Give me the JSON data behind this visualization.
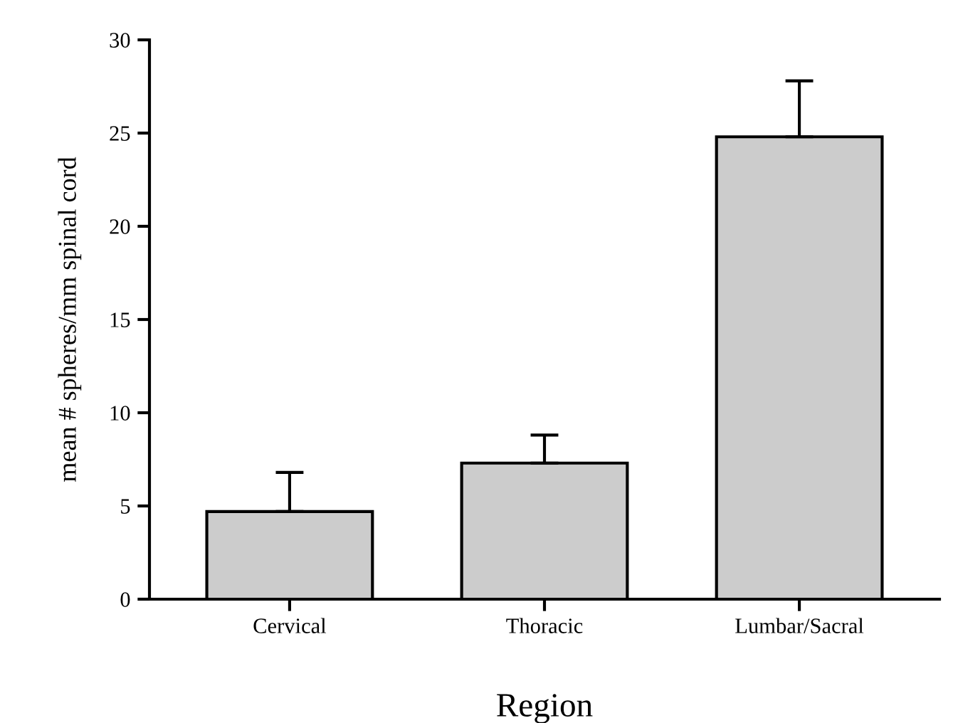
{
  "chart_data": {
    "type": "bar",
    "xlabel": "Region",
    "ylabel": "mean # spheres/mm spinal cord",
    "categories": [
      "Cervical",
      "Thoracic",
      "Lumbar/Sacral"
    ],
    "values": [
      4.7,
      7.3,
      24.8
    ],
    "errors": [
      [
        4.7,
        6.8
      ],
      [
        7.3,
        8.8
      ],
      [
        24.8,
        27.8
      ]
    ],
    "color": "#cccccc",
    "ylim": [
      0,
      30
    ],
    "yticks": [
      0,
      5,
      10,
      15,
      20,
      25,
      30
    ],
    "grid": false
  }
}
